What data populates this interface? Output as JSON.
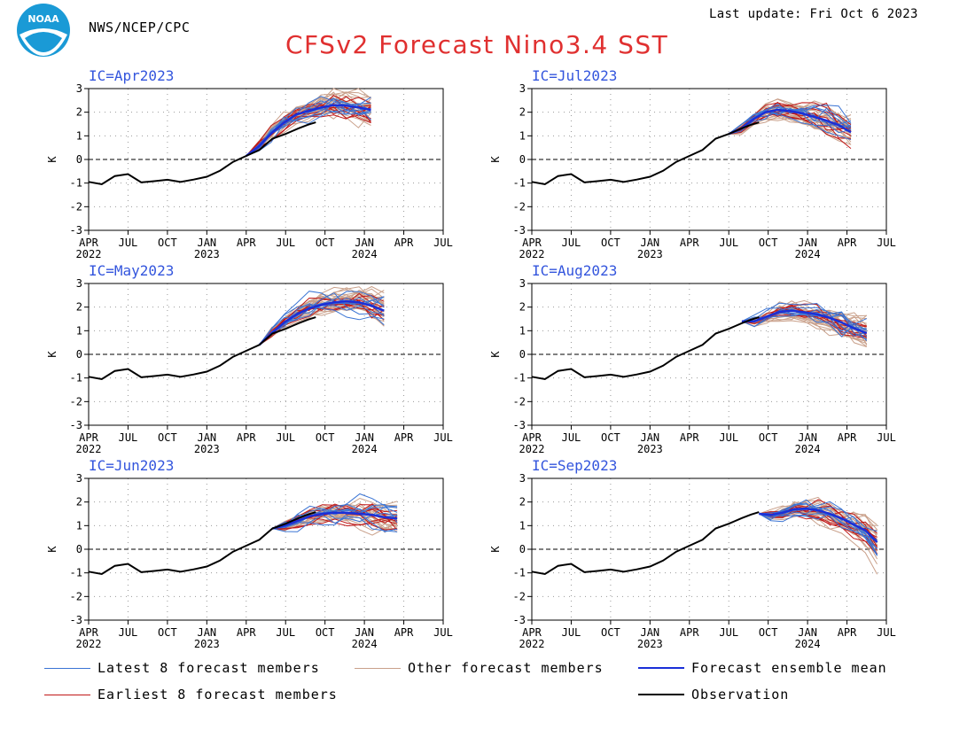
{
  "header": {
    "agency": "NWS/NCEP/CPC",
    "last_update": "Last update: Fri Oct 6 2023",
    "title": "CFSv2 Forecast Nino3.4 SST",
    "logo_text": "NOAA"
  },
  "colors": {
    "latest": "#3a74d4",
    "other": "#c9a08a",
    "earliest": "#c01818",
    "mean": "#1a2fd8",
    "obs": "#000000",
    "title": "#e03030",
    "ic_label": "#3355dd"
  },
  "chart_data": {
    "type": "line",
    "panel_count": 6,
    "ylabel": "K",
    "ylim": [
      -3,
      3
    ],
    "yticks": [
      -3,
      -2,
      -1,
      0,
      1,
      2,
      3
    ],
    "x_unit": "months since Apr 2022",
    "xlim": [
      0,
      27
    ],
    "xticks": [
      0,
      3,
      6,
      9,
      12,
      15,
      18,
      21,
      24,
      27
    ],
    "xtick_labels": [
      "APR",
      "JUL",
      "OCT",
      "JAN",
      "APR",
      "JUL",
      "OCT",
      "JAN",
      "APR",
      "JUL"
    ],
    "year_labels": [
      {
        "x": 0,
        "label": "2022"
      },
      {
        "x": 9,
        "label": "2023"
      },
      {
        "x": 21,
        "label": "2024"
      }
    ],
    "zero_line": "dashed",
    "grid": "dotted",
    "observation": {
      "name": "Observation",
      "x": [
        0,
        1,
        2,
        3,
        4,
        5,
        6,
        7,
        8,
        9,
        10,
        11,
        12,
        13,
        14,
        15,
        15.5,
        16,
        16.7,
        17.3
      ],
      "y": [
        -0.95,
        -1.05,
        -0.7,
        -0.62,
        -0.97,
        -0.92,
        -0.86,
        -0.95,
        -0.85,
        -0.73,
        -0.48,
        -0.1,
        0.15,
        0.4,
        0.88,
        1.08,
        1.2,
        1.32,
        1.47,
        1.57
      ]
    },
    "panels": [
      {
        "ic": "IC=Apr2023",
        "start_x": 12,
        "start_y": 0.15,
        "horizon": 9.5,
        "mean": [
          0.15,
          0.55,
          1.1,
          1.55,
          1.9,
          2.05,
          2.2,
          2.3,
          2.28,
          2.2,
          2.1
        ]
      },
      {
        "ic": "IC=Jul2023",
        "start_x": 15,
        "start_y": 1.08,
        "horizon": 9.3,
        "mean": [
          1.08,
          1.3,
          1.7,
          2.0,
          2.1,
          2.05,
          1.95,
          1.8,
          1.65,
          1.45,
          1.15
        ]
      },
      {
        "ic": "IC=May2023",
        "start_x": 13,
        "start_y": 0.4,
        "horizon": 9.5,
        "mean": [
          0.4,
          0.9,
          1.35,
          1.7,
          1.95,
          2.1,
          2.2,
          2.25,
          2.2,
          2.05,
          1.85
        ]
      },
      {
        "ic": "IC=Aug2023",
        "start_x": 16,
        "start_y": 1.4,
        "horizon": 9.5,
        "mean": [
          1.4,
          1.4,
          1.6,
          1.8,
          1.85,
          1.78,
          1.7,
          1.55,
          1.35,
          1.1,
          0.9
        ]
      },
      {
        "ic": "IC=Jun2023",
        "start_x": 14,
        "start_y": 0.88,
        "horizon": 9.5,
        "mean": [
          0.88,
          1.0,
          1.2,
          1.4,
          1.5,
          1.55,
          1.55,
          1.5,
          1.45,
          1.35,
          1.3
        ]
      },
      {
        "ic": "IC=Sep2023",
        "start_x": 17.3,
        "start_y": 1.5,
        "horizon": 9.0,
        "mean": [
          1.5,
          1.45,
          1.55,
          1.7,
          1.72,
          1.65,
          1.5,
          1.3,
          1.05,
          0.8,
          0.3
        ]
      }
    ],
    "legend": [
      {
        "key": "latest",
        "label": "Latest 8 forecast members"
      },
      {
        "key": "other",
        "label": "Other forecast members"
      },
      {
        "key": "mean",
        "label": "Forecast ensemble mean"
      },
      {
        "key": "earliest",
        "label": "Earliest 8 forecast members"
      },
      {
        "key": "obs",
        "label": "Observation"
      }
    ]
  }
}
